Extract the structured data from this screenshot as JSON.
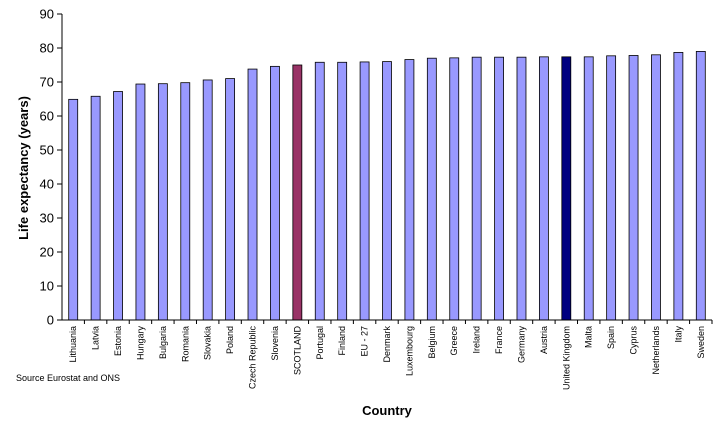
{
  "chart_data": {
    "type": "bar",
    "title": "",
    "xlabel": "Country",
    "ylabel": "Life expectancy (years)",
    "ylim": [
      0,
      90
    ],
    "ytick_step": 10,
    "grid": false,
    "categories": [
      "Lithuania",
      "Latvia",
      "Estonia",
      "Hungary",
      "Bulgaria",
      "Romania",
      "Slovakia",
      "Poland",
      "Czech Republic",
      "Slovenia",
      "SCOTLAND",
      "Portugal",
      "Finland",
      "EU - 27",
      "Denmark",
      "Luxembourg",
      "Belgium",
      "Greece",
      "Ireland",
      "France",
      "Germany",
      "Austria",
      "United Kingdom",
      "Malta",
      "Spain",
      "Cyprus",
      "Netherlands",
      "Italy",
      "Sweden"
    ],
    "values": [
      64.9,
      65.8,
      67.2,
      69.4,
      69.5,
      69.8,
      70.6,
      71.0,
      73.8,
      74.6,
      75.0,
      75.8,
      75.8,
      75.9,
      76.0,
      76.6,
      77.0,
      77.1,
      77.3,
      77.3,
      77.3,
      77.4,
      77.4,
      77.4,
      77.7,
      77.8,
      78.0,
      78.7,
      79.0
    ],
    "colors": {
      "default": "#9999ff",
      "highlight_scotland": "#993366",
      "highlight_uk": "#000080",
      "outline": "#000000"
    },
    "highlight": {
      "SCOTLAND": "#993366",
      "United Kingdom": "#000080"
    }
  },
  "source_note": "Source Eurostat and ONS"
}
